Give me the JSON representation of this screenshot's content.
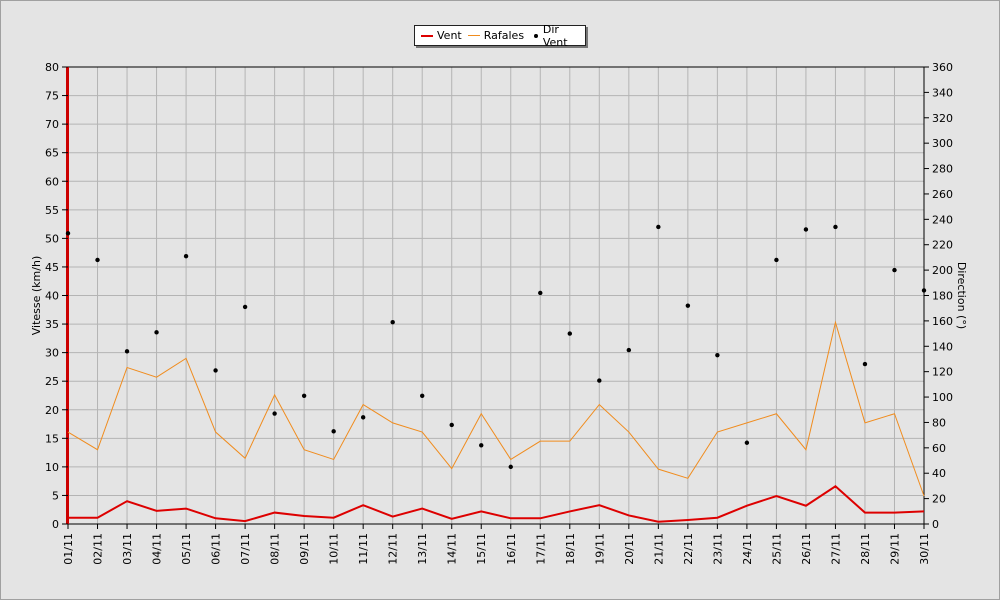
{
  "chart_data": {
    "type": "line",
    "title": "",
    "ylabel": "Vitesse (km/h)",
    "y2label": "Direction (°)",
    "ylim": [
      0,
      80
    ],
    "y2lim": [
      0,
      360
    ],
    "yticks": [
      0,
      5,
      10,
      15,
      20,
      25,
      30,
      35,
      40,
      45,
      50,
      55,
      60,
      65,
      70,
      75,
      80
    ],
    "y2ticks": [
      0,
      20,
      40,
      60,
      80,
      100,
      120,
      140,
      160,
      180,
      200,
      220,
      240,
      260,
      280,
      300,
      320,
      340,
      360
    ],
    "grid": true,
    "legend_position": "top-center",
    "categories": [
      "01/11",
      "02/11",
      "03/11",
      "04/11",
      "05/11",
      "06/11",
      "07/11",
      "08/11",
      "09/11",
      "10/11",
      "11/11",
      "12/11",
      "13/11",
      "14/11",
      "15/11",
      "16/11",
      "17/11",
      "18/11",
      "19/11",
      "20/11",
      "21/11",
      "22/11",
      "23/11",
      "24/11",
      "25/11",
      "26/11",
      "27/11",
      "28/11",
      "29/11",
      "30/11"
    ],
    "series": [
      {
        "name": "Vent",
        "axis": "left",
        "style": "line",
        "color": "#dd0000",
        "values": [
          1.1,
          1.1,
          4.0,
          2.3,
          2.7,
          1.0,
          0.5,
          2.0,
          1.4,
          1.1,
          3.3,
          1.3,
          2.7,
          0.9,
          2.2,
          1.0,
          1.0,
          2.2,
          3.3,
          1.5,
          0.4,
          0.7,
          1.1,
          3.2,
          4.9,
          3.2,
          6.6,
          2.0,
          2.0,
          2.2
        ]
      },
      {
        "name": "Rafales",
        "axis": "left",
        "style": "line",
        "color": "#f08c1e",
        "values": [
          16.1,
          13.0,
          27.4,
          25.7,
          29.0,
          16.1,
          11.5,
          22.6,
          13.0,
          11.3,
          20.9,
          17.7,
          16.1,
          9.7,
          19.3,
          11.3,
          14.5,
          14.5,
          20.9,
          16.1,
          9.6,
          8.0,
          16.1,
          17.7,
          19.3,
          13.0,
          35.3,
          17.7,
          19.3,
          4.9
        ]
      },
      {
        "name": "Dir Vent",
        "axis": "right",
        "style": "points",
        "color": "#000000",
        "values": [
          229,
          208,
          136,
          151,
          211,
          121,
          171,
          87,
          101,
          73,
          84,
          159,
          101,
          78,
          62,
          45,
          182,
          150,
          113,
          137,
          234,
          172,
          133,
          64,
          208,
          232,
          234,
          126,
          200,
          184
        ]
      }
    ]
  }
}
